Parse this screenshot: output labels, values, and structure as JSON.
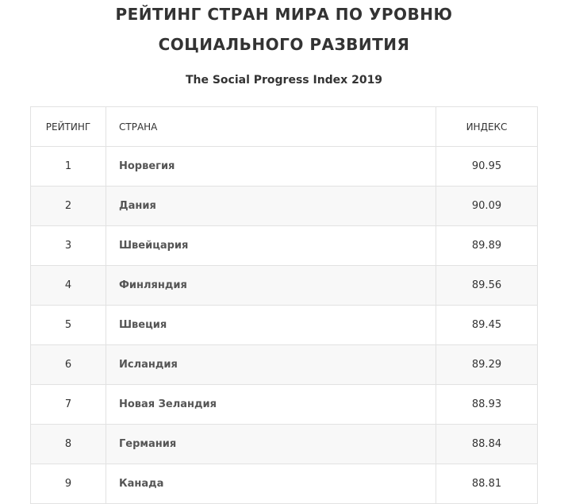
{
  "header": {
    "title_line1": "РЕЙТИНГ СТРАН МИРА ПО УРОВНЮ",
    "title_line2": "СОЦИАЛЬНОГО РАЗВИТИЯ",
    "subtitle": "The Social Progress Index 2019"
  },
  "table": {
    "columns": [
      "РЕЙТИНГ",
      "СТРАНА",
      "ИНДЕКС"
    ],
    "rows": [
      [
        "1",
        "Норвегия",
        "90.95"
      ],
      [
        "2",
        "Дания",
        "90.09"
      ],
      [
        "3",
        "Швейцария",
        "89.89"
      ],
      [
        "4",
        "Финляндия",
        "89.56"
      ],
      [
        "5",
        "Швеция",
        "89.45"
      ],
      [
        "6",
        "Исландия",
        "89.29"
      ],
      [
        "7",
        "Новая Зеландия",
        "88.93"
      ],
      [
        "8",
        "Германия",
        "88.84"
      ],
      [
        "9",
        "Канада",
        "88.81"
      ]
    ]
  }
}
